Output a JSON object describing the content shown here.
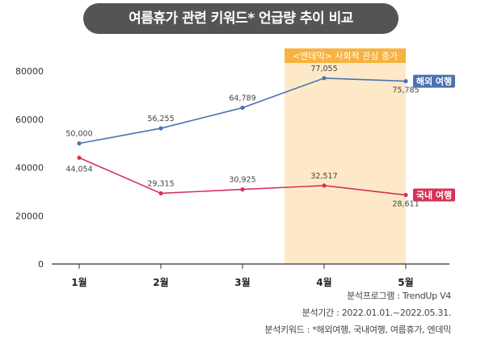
{
  "title": "여름휴가 관련 키워드* 언급량 추이 비교",
  "highlight_label": "<엔데믹> 사회적 관심 증가",
  "footnotes": {
    "program": "분석프로그램 : TrendUp V4",
    "period": "분석기간 : 2022.01.01.~2022.05.31.",
    "keywords": "분석키워드 : *해외여행, 국내여행, 여름휴가, 엔데믹"
  },
  "chart_data": {
    "type": "line",
    "categories": [
      "1월",
      "2월",
      "3월",
      "4월",
      "5월"
    ],
    "ylim": [
      0,
      80000
    ],
    "yticks": [
      "0",
      "20000",
      "40000",
      "60000",
      "80000"
    ],
    "grid": false,
    "highlight_range": [
      "4월",
      "5월"
    ],
    "series": [
      {
        "name": "해외 여행",
        "color": "#4a72b2",
        "values": [
          50000,
          56255,
          64789,
          77055,
          75785
        ],
        "labels": [
          "50,000",
          "56,255",
          "64,789",
          "77,055",
          "75,785"
        ]
      },
      {
        "name": "국내 여행",
        "color": "#d6335a",
        "values": [
          44054,
          29315,
          30925,
          32517,
          28611
        ],
        "labels": [
          "44,054",
          "29,315",
          "30,925",
          "32,517",
          "28,611"
        ]
      }
    ]
  },
  "colors": {
    "highlight_fill": "#fde9c8",
    "highlight_label_bg": "#f7b241",
    "axis": "#333333"
  }
}
